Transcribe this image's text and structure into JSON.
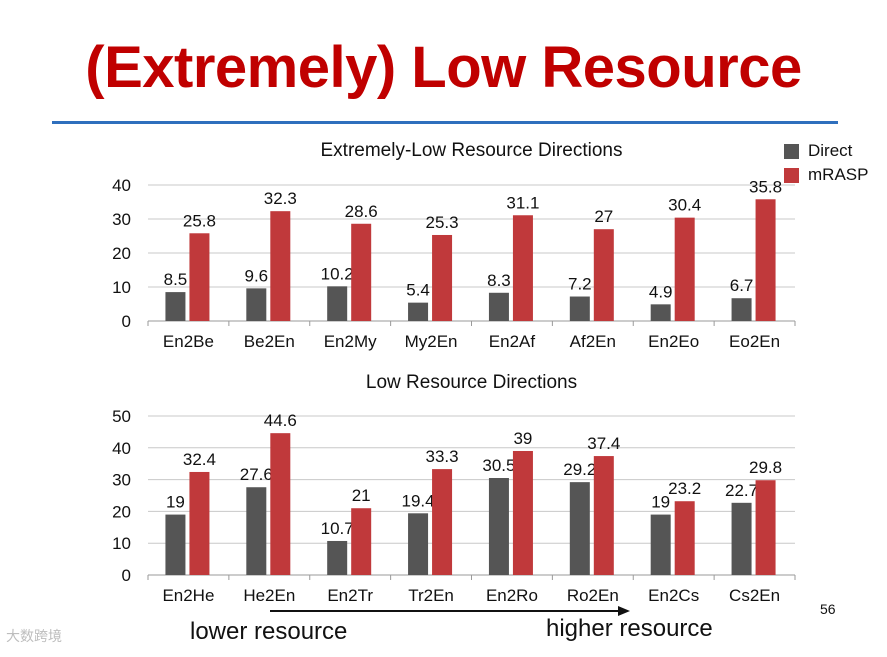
{
  "slide": {
    "title": "(Extremely) Low Resource",
    "page_number": "56",
    "footer_left": "lower resource",
    "footer_right": "higher resource",
    "watermark": "大数跨境"
  },
  "colors": {
    "title": "#c00000",
    "rule": "#2f6fbd",
    "direct": "#555555",
    "mrasp": "#c0393b"
  },
  "legend": {
    "items": [
      {
        "label": "Direct",
        "color": "#555555"
      },
      {
        "label": "mRASP",
        "color": "#c0393b"
      }
    ]
  },
  "chart_data": [
    {
      "type": "bar",
      "title": "Extremely-Low Resource Directions",
      "categories": [
        "En2Be",
        "Be2En",
        "En2My",
        "My2En",
        "En2Af",
        "Af2En",
        "En2Eo",
        "Eo2En"
      ],
      "series": [
        {
          "name": "Direct",
          "values": [
            8.5,
            9.6,
            10.2,
            5.4,
            8.3,
            7.2,
            4.9,
            6.7
          ]
        },
        {
          "name": "mRASP",
          "values": [
            25.8,
            32.3,
            28.6,
            25.3,
            31.1,
            27,
            30.4,
            35.8
          ]
        }
      ],
      "ylim": [
        0,
        40
      ],
      "yticks": [
        0,
        10,
        20,
        30,
        40
      ],
      "grid": true,
      "legend_position": "top-right"
    },
    {
      "type": "bar",
      "title": "Low Resource Directions",
      "categories": [
        "En2He",
        "He2En",
        "En2Tr",
        "Tr2En",
        "En2Ro",
        "Ro2En",
        "En2Cs",
        "Cs2En"
      ],
      "series": [
        {
          "name": "Direct",
          "values": [
            19,
            27.6,
            10.7,
            19.4,
            30.5,
            29.2,
            19,
            22.7
          ]
        },
        {
          "name": "mRASP",
          "values": [
            32.4,
            44.6,
            21,
            33.3,
            39,
            37.4,
            23.2,
            29.8
          ]
        }
      ],
      "ylim": [
        0,
        50
      ],
      "yticks": [
        0,
        10,
        20,
        30,
        40,
        50
      ],
      "grid": true
    }
  ]
}
